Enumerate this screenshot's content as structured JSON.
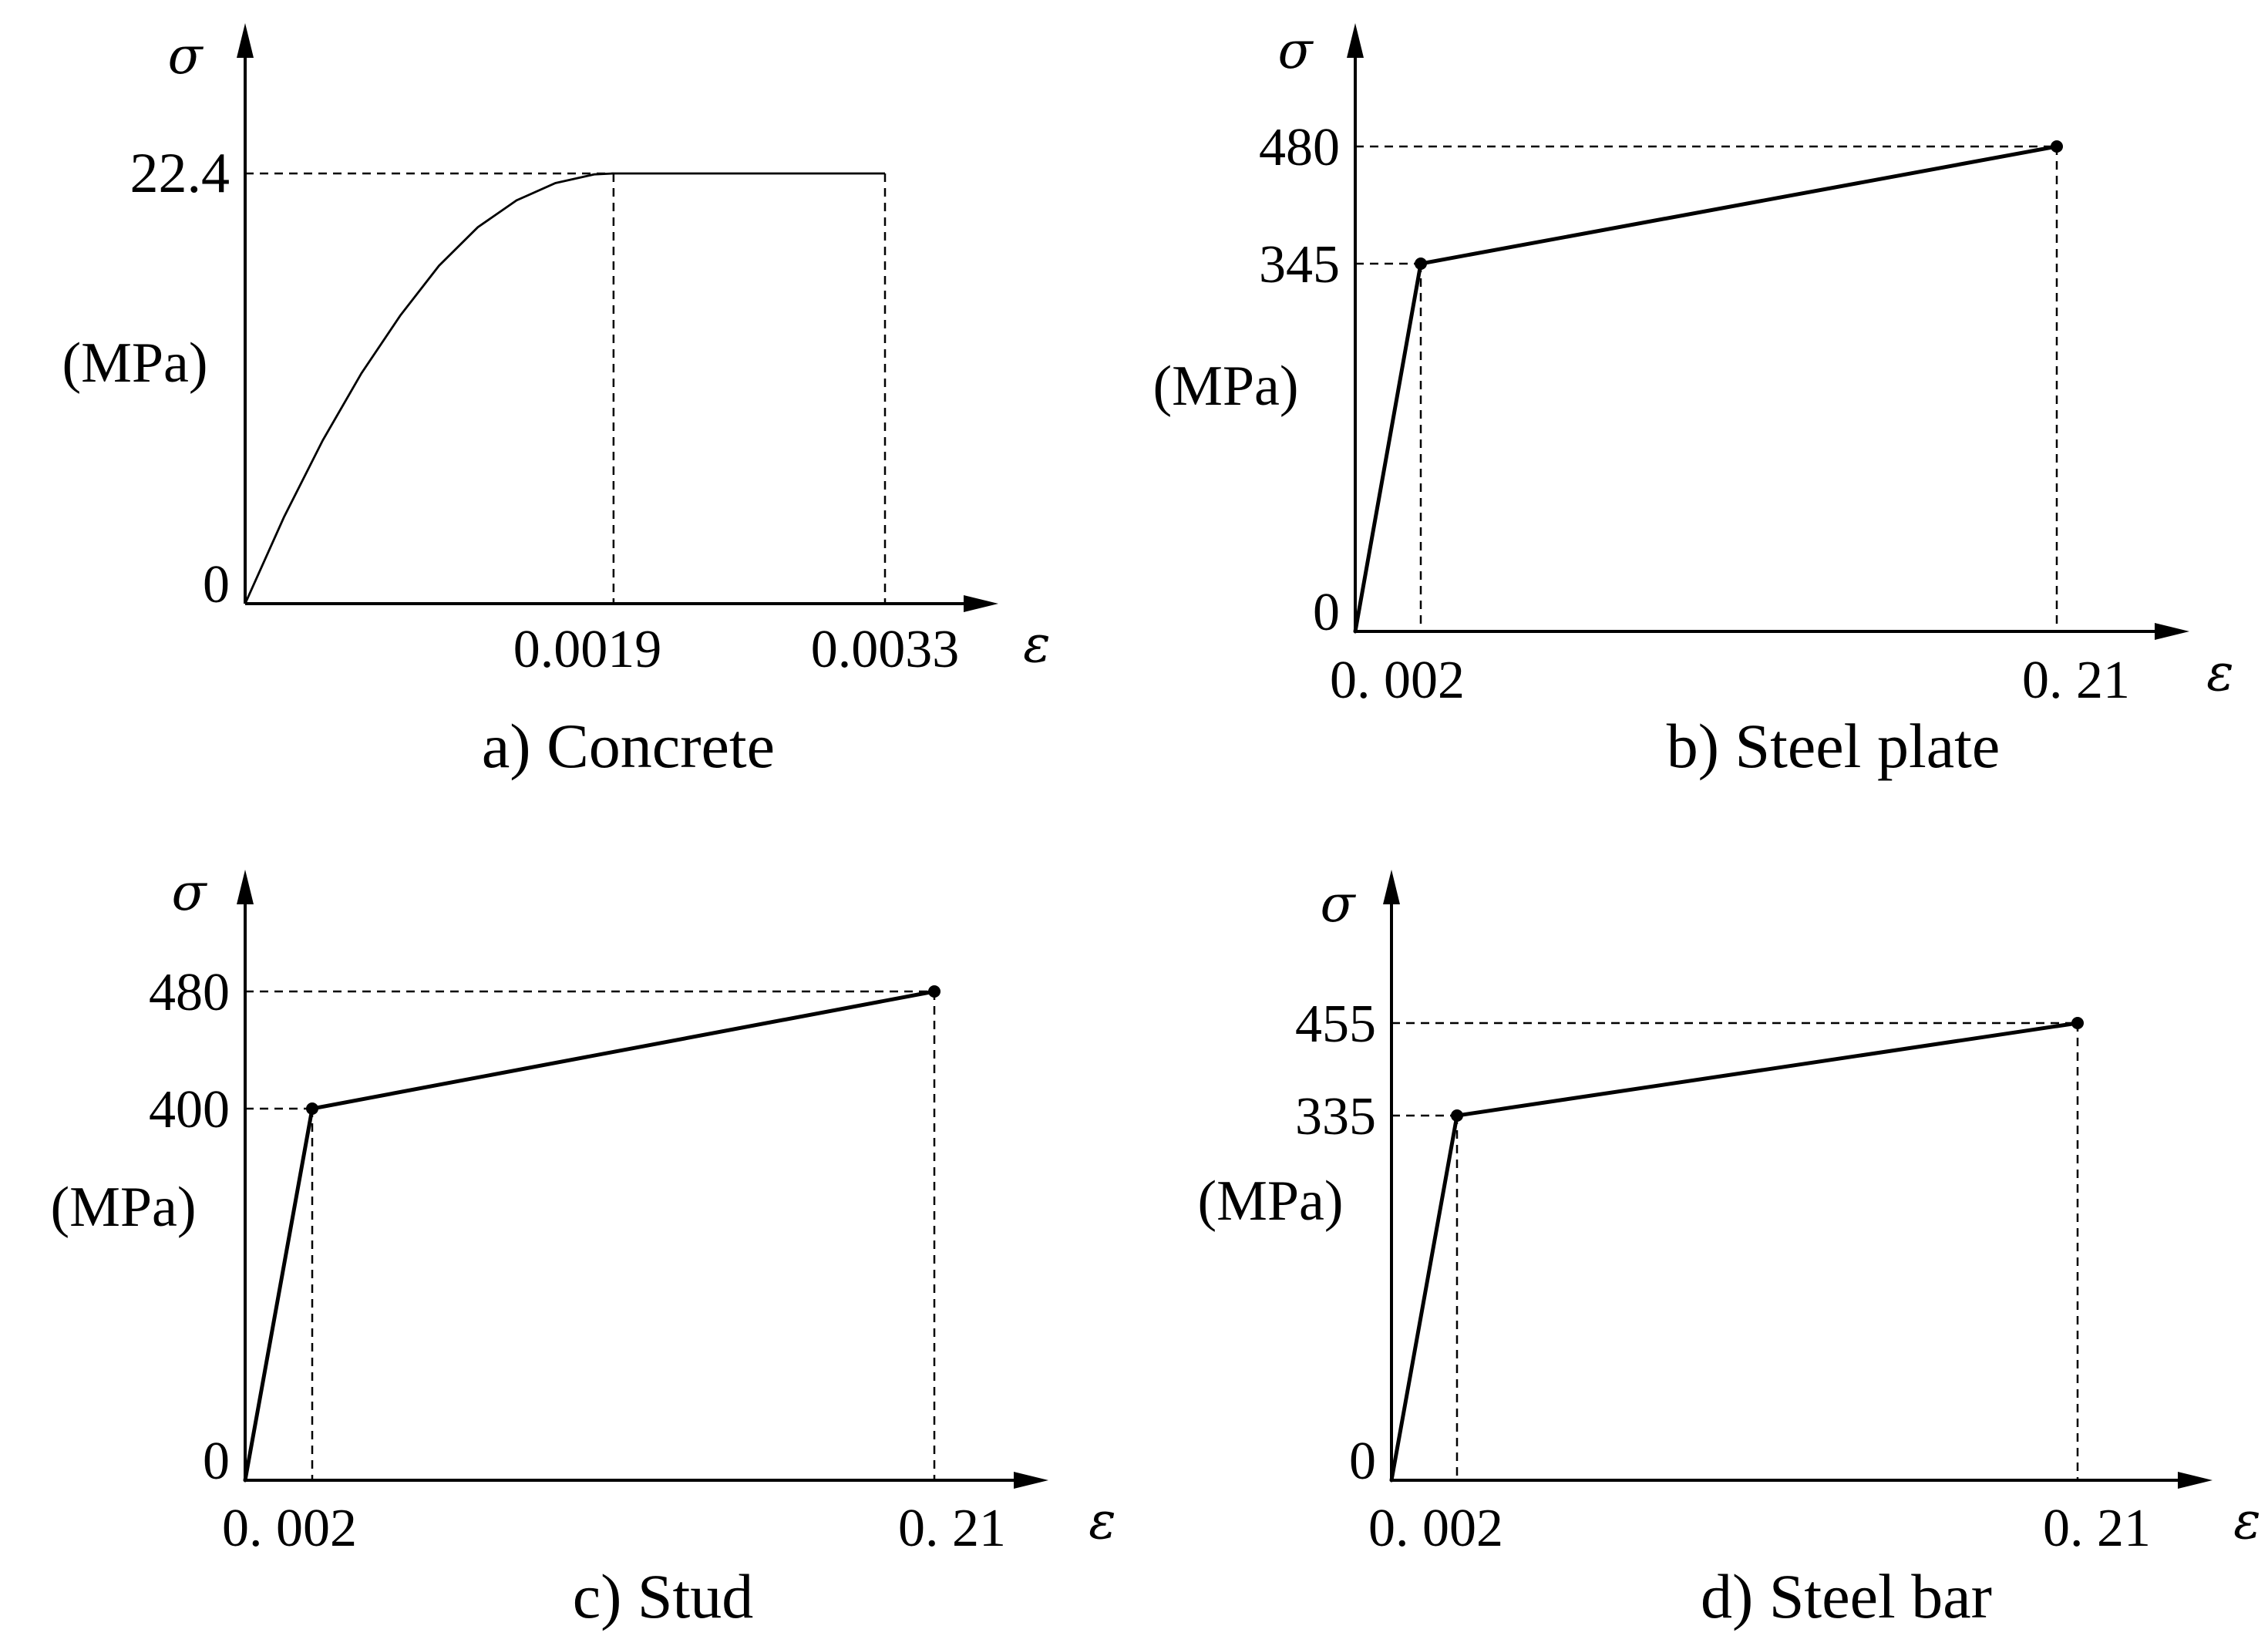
{
  "chart_data": [
    {
      "type": "line",
      "title": "a) Concrete",
      "xlabel": "ε",
      "ylabel": "σ",
      "ylabel_unit": "(MPa)",
      "x_ticks": [
        "0.0019",
        "0.0033"
      ],
      "y_ticks": [
        "0",
        "22.4"
      ],
      "xlim": [
        0,
        0.0036
      ],
      "ylim": [
        0,
        27
      ],
      "series": [
        {
          "x": [
            0,
            0.0002,
            0.0004,
            0.0006,
            0.0008,
            0.001,
            0.0012,
            0.0014,
            0.0016,
            0.0018,
            0.0019,
            0.0033
          ],
          "y": [
            0,
            4.5,
            8.5,
            12.0,
            15.0,
            17.6,
            19.6,
            21.0,
            21.9,
            22.35,
            22.4,
            22.4
          ]
        }
      ],
      "points": [],
      "guides": [
        {
          "x": 0.0019,
          "y": 22.4
        },
        {
          "x": 0.0033,
          "y": 22.4
        }
      ]
    },
    {
      "type": "line",
      "title": "b) Steel plate",
      "xlabel": "ε",
      "ylabel": "σ",
      "ylabel_unit": "(MPa)",
      "x_ticks": [
        "0. 002",
        "0. 21"
      ],
      "y_ticks": [
        "0",
        "345",
        "480"
      ],
      "series": [
        {
          "x": [
            0,
            0.002,
            0.21
          ],
          "y": [
            0,
            345,
            480
          ]
        }
      ],
      "points": [
        {
          "x": 0.002,
          "y": 345
        },
        {
          "x": 0.21,
          "y": 480
        }
      ]
    },
    {
      "type": "line",
      "title": "c) Stud",
      "xlabel": "ε",
      "ylabel": "σ",
      "ylabel_unit": "(MPa)",
      "x_ticks": [
        "0. 002",
        "0. 21"
      ],
      "y_ticks": [
        "0",
        "400",
        "480"
      ],
      "series": [
        {
          "x": [
            0,
            0.002,
            0.21
          ],
          "y": [
            0,
            400,
            480
          ]
        }
      ],
      "points": [
        {
          "x": 0.002,
          "y": 400
        },
        {
          "x": 0.21,
          "y": 480
        }
      ]
    },
    {
      "type": "line",
      "title": "d) Steel bar",
      "xlabel": "ε",
      "ylabel": "σ",
      "ylabel_unit": "(MPa)",
      "x_ticks": [
        "0. 002",
        "0. 21"
      ],
      "y_ticks": [
        "0",
        "335",
        "455"
      ],
      "series": [
        {
          "x": [
            0,
            0.002,
            0.21
          ],
          "y": [
            0,
            335,
            455
          ]
        }
      ],
      "points": [
        {
          "x": 0.002,
          "y": 335
        },
        {
          "x": 0.21,
          "y": 455
        }
      ]
    }
  ]
}
